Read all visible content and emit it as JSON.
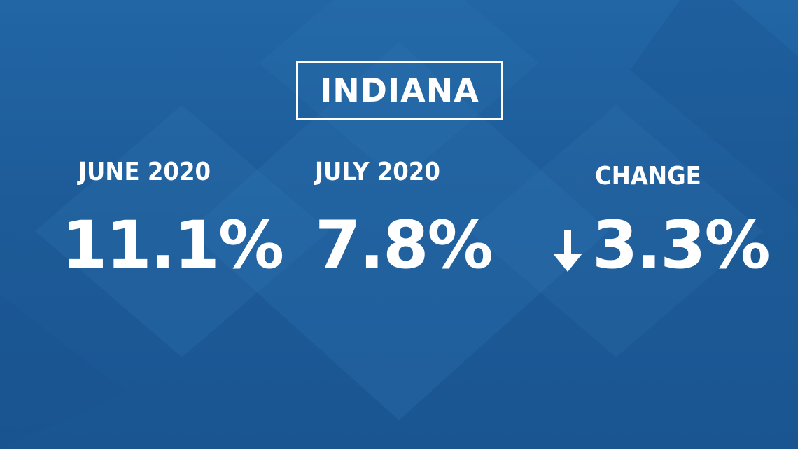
{
  "title": "INDIANA",
  "columns": [
    {
      "label": "JUNE 2020",
      "value": "11.1%"
    },
    {
      "label": "JULY 2020",
      "value": "7.8%"
    },
    {
      "label": "CHANGE",
      "value": "3.3%",
      "direction": "down-arrow-icon"
    }
  ],
  "colors": {
    "background": "#1f5a96",
    "text": "#ffffff"
  }
}
